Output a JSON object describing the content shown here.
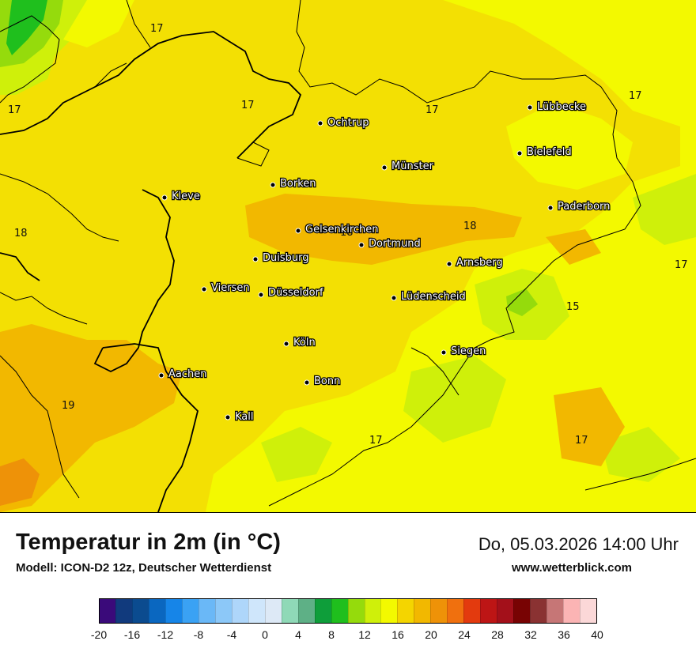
{
  "title": "Temperatur in 2m (in °C)",
  "model": "Modell: ICON-D2 12z, Deutscher Wetterdienst",
  "date": "Do, 05.03.2026 14:00 Uhr",
  "website": "www.wetterblick.com",
  "cities": [
    {
      "name": "Lübbecke"
    },
    {
      "name": "Ochtrup"
    },
    {
      "name": "Bielefeld"
    },
    {
      "name": "Münster"
    },
    {
      "name": "Borken"
    },
    {
      "name": "Kleve"
    },
    {
      "name": "Paderborn"
    },
    {
      "name": "Gelsenkirchen"
    },
    {
      "name": "Dortmund"
    },
    {
      "name": "Duisburg"
    },
    {
      "name": "Arnsberg"
    },
    {
      "name": "Viersen"
    },
    {
      "name": "Düsseldorf"
    },
    {
      "name": "Lüdenscheid"
    },
    {
      "name": "Köln"
    },
    {
      "name": "Siegen"
    },
    {
      "name": "Aachen"
    },
    {
      "name": "Bonn"
    },
    {
      "name": "Kall"
    }
  ],
  "isotherm_labels": [
    "17",
    "17",
    "17",
    "17",
    "17",
    "18",
    "18",
    "18",
    "17",
    "15",
    "19",
    "17",
    "17"
  ],
  "colorbar": {
    "colors": [
      "#3a0a7a",
      "#113a7d",
      "#0b4b8f",
      "#0a67c0",
      "#1685e8",
      "#3aa2f4",
      "#6ab8f7",
      "#8cc8f8",
      "#aed6fa",
      "#cfe6fb",
      "#dde9f6",
      "#8fd9b7",
      "#5eb086",
      "#0e9e3a",
      "#1fbf1d",
      "#95db0c",
      "#cff00a",
      "#f3f900",
      "#f4d500",
      "#f2b800",
      "#ee9208",
      "#f0700e",
      "#e33a0e",
      "#bd1515",
      "#a3101a",
      "#780303",
      "#8a3232",
      "#c67676",
      "#fbb4b4",
      "#fbd8d8"
    ],
    "tick_labels": [
      "-20",
      "-16",
      "-12",
      "-8",
      "-4",
      "0",
      "4",
      "8",
      "12",
      "16",
      "20",
      "24",
      "28",
      "32",
      "36",
      "40"
    ]
  }
}
